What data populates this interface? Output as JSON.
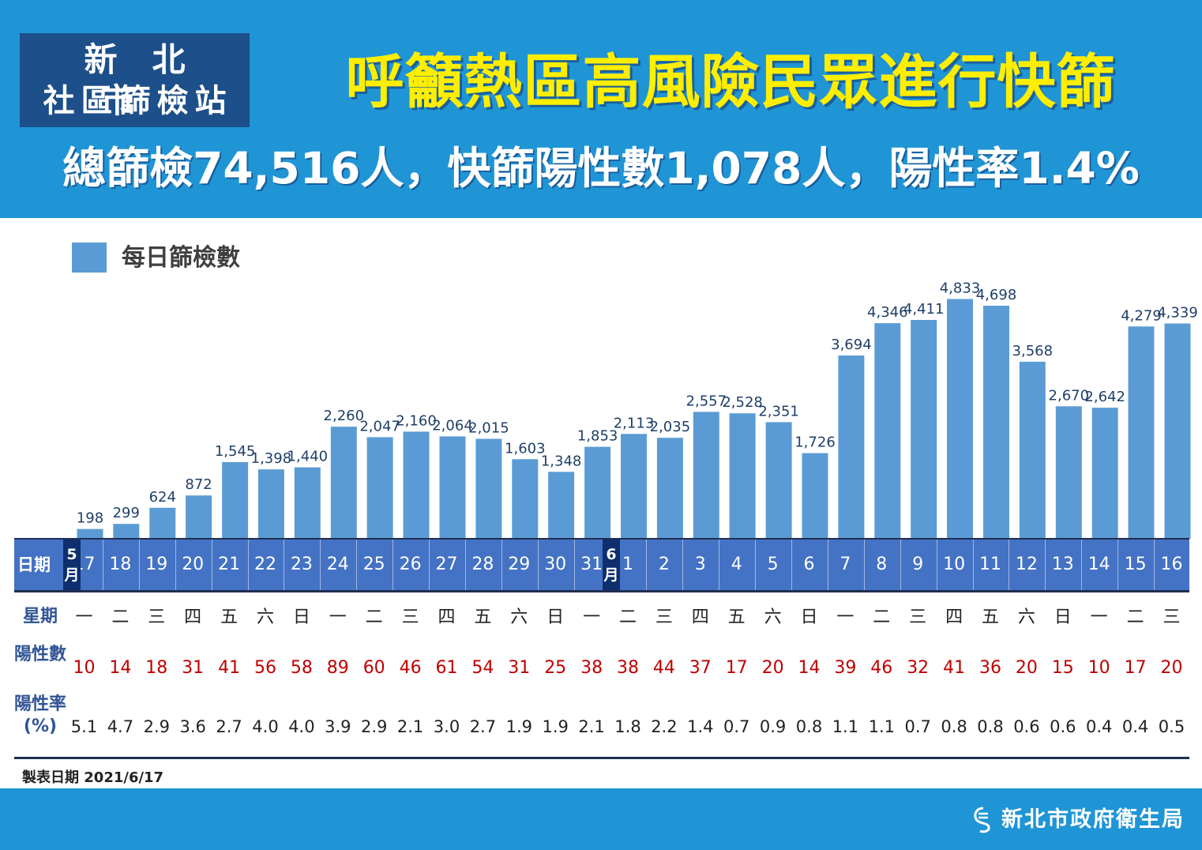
{
  "header": {
    "station_line1": "新北市",
    "station_line2": "社區篩檢站",
    "headline": "呼籲熱區高風險民眾進行快篩",
    "subheadline": "總篩檢74,516人，快篩陽性數1,078人，陽性率1.4%"
  },
  "legend": {
    "label": "每日篩檢數",
    "color": "#5b9bd5"
  },
  "table": {
    "date_label": "日期",
    "weekday_label": "星期",
    "positive_label": "陽性數",
    "rate_label": "陽性率(%)",
    "month_may": "5月",
    "month_june": "6月"
  },
  "chart_data": {
    "type": "bar",
    "categories": [
      "17",
      "18",
      "19",
      "20",
      "21",
      "22",
      "23",
      "24",
      "25",
      "26",
      "27",
      "28",
      "29",
      "30",
      "31",
      "1",
      "2",
      "3",
      "4",
      "5",
      "6",
      "7",
      "8",
      "9",
      "10",
      "11",
      "12",
      "13",
      "14",
      "15",
      "16"
    ],
    "series": [
      {
        "name": "每日篩檢數",
        "values": [
          198,
          299,
          624,
          872,
          1545,
          1398,
          1440,
          2260,
          2047,
          2160,
          2064,
          2015,
          1603,
          1348,
          1853,
          2113,
          2035,
          2557,
          2528,
          2351,
          1726,
          3694,
          4346,
          4411,
          4833,
          4698,
          3568,
          2670,
          2642,
          4279,
          4339
        ]
      }
    ],
    "value_labels": [
      "198",
      "299",
      "624",
      "872",
      "1,545",
      "1,398",
      "1,440",
      "2,260",
      "2,047",
      "2,160",
      "2,064",
      "2,015",
      "1,603",
      "1,348",
      "1,853",
      "2,113",
      "2,035",
      "2,557",
      "2,528",
      "2,351",
      "1,726",
      "3,694",
      "4,346",
      "4,411",
      "4,833",
      "4,698",
      "3,568",
      "2,670",
      "2,642",
      "4,279",
      "4,339"
    ],
    "weekdays": [
      "一",
      "二",
      "三",
      "四",
      "五",
      "六",
      "日",
      "一",
      "二",
      "三",
      "四",
      "五",
      "六",
      "日",
      "一",
      "二",
      "三",
      "四",
      "五",
      "六",
      "日",
      "一",
      "二",
      "三",
      "四",
      "五",
      "六",
      "日",
      "一",
      "二",
      "三"
    ],
    "positives": [
      "10",
      "14",
      "18",
      "31",
      "41",
      "56",
      "58",
      "89",
      "60",
      "46",
      "61",
      "54",
      "31",
      "25",
      "38",
      "38",
      "44",
      "37",
      "17",
      "20",
      "14",
      "39",
      "46",
      "32",
      "41",
      "36",
      "20",
      "15",
      "10",
      "17",
      "20"
    ],
    "rates": [
      "5.1",
      "4.7",
      "2.9",
      "3.6",
      "2.7",
      "4.0",
      "4.0",
      "3.9",
      "2.9",
      "2.1",
      "3.0",
      "2.7",
      "1.9",
      "1.9",
      "2.1",
      "1.8",
      "2.2",
      "1.4",
      "0.7",
      "0.9",
      "0.8",
      "1.1",
      "1.1",
      "0.7",
      "0.8",
      "0.8",
      "0.6",
      "0.6",
      "0.4",
      "0.4",
      "0.5"
    ],
    "ylim": [
      0,
      5000
    ],
    "legend_position": "top-left",
    "grid": false
  },
  "footer": {
    "made_date": "製表日期 2021/6/17",
    "org_name": "新北市政府衛生局"
  }
}
